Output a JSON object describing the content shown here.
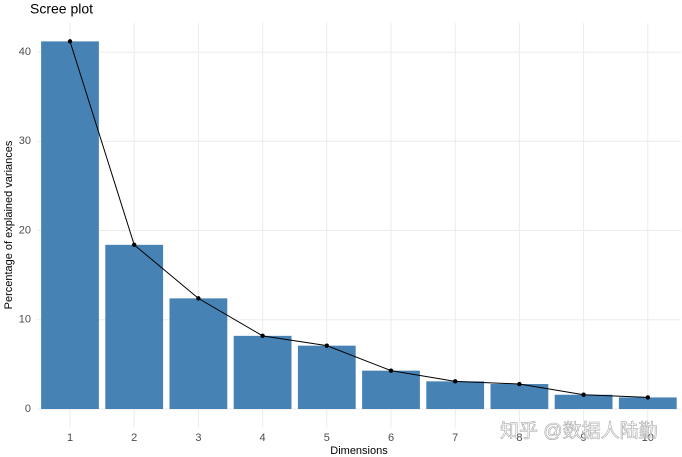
{
  "chart_data": {
    "type": "bar",
    "title": "Scree plot",
    "x_label": "Dimensions",
    "y_label": "Percentage of explained variances",
    "categories": [
      "1",
      "2",
      "3",
      "4",
      "5",
      "6",
      "7",
      "8",
      "9",
      "10"
    ],
    "values": [
      41.2,
      18.4,
      12.4,
      8.2,
      7.1,
      4.3,
      3.1,
      2.8,
      1.6,
      1.3
    ],
    "color": "#4682b4",
    "line_color": "#000000",
    "ylim": [
      -2.06,
      43.26
    ],
    "yticks": [
      0,
      10,
      20,
      30,
      40
    ],
    "grid": true,
    "watermark": "知乎 @数据人陆勤"
  }
}
